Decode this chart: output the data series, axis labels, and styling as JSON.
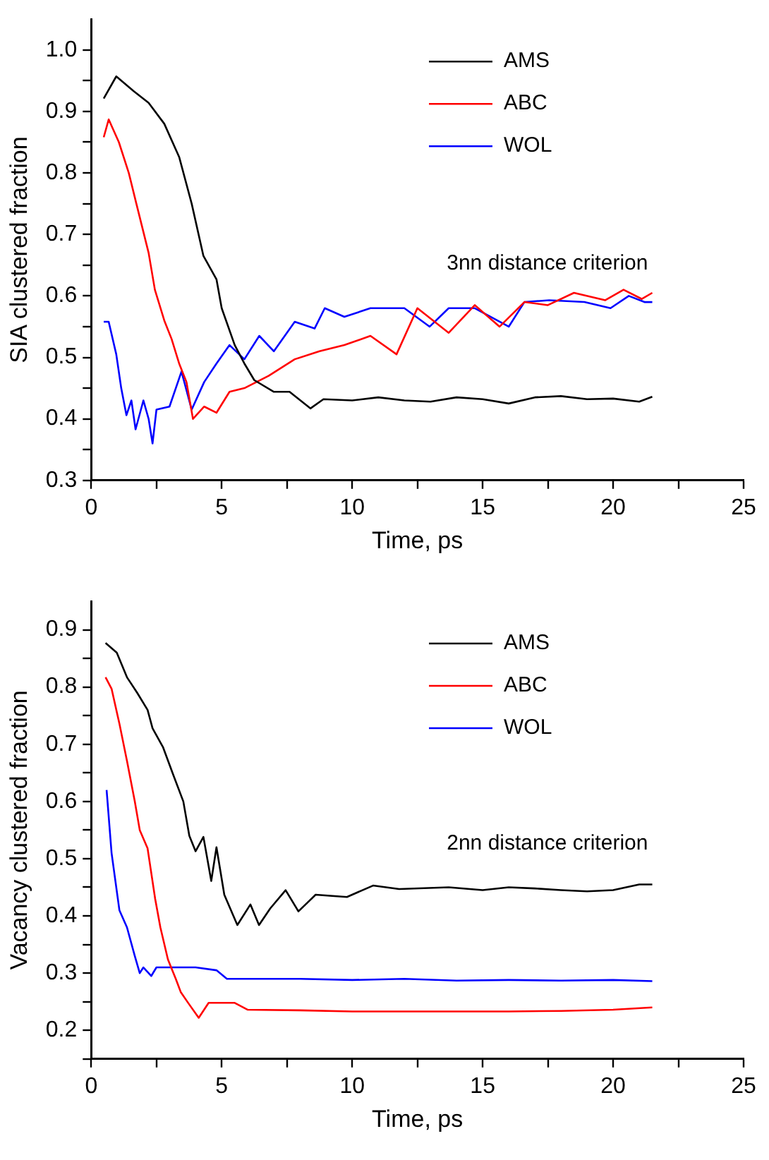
{
  "chart_data": [
    {
      "type": "line",
      "xlabel": "Time, ps",
      "ylabel": "SIA clustered fraction",
      "annotations": [
        "3nn distance criterion"
      ],
      "legend": "top right",
      "marker": "none",
      "line_style": "solid",
      "xlim": [
        0,
        25
      ],
      "xticks": [
        0,
        {
          "value": 2.5,
          "label": null
        },
        5,
        {
          "value": 7.5,
          "label": null
        },
        10,
        {
          "value": 12.5,
          "label": null
        },
        15,
        {
          "value": 17.5,
          "label": null
        },
        20,
        {
          "value": 22.5,
          "label": null
        },
        25
      ],
      "ylim": [
        0.3,
        1.05
      ],
      "yticks": [
        {
          "value": 0.3,
          "label": "0.3"
        },
        {
          "value": 0.35,
          "label": null
        },
        {
          "value": 0.4,
          "label": "0.4"
        },
        {
          "value": 0.45,
          "label": null
        },
        {
          "value": 0.5,
          "label": "0.5"
        },
        {
          "value": 0.55,
          "label": null
        },
        {
          "value": 0.6,
          "label": "0.6"
        },
        {
          "value": 0.65,
          "label": null
        },
        {
          "value": 0.7,
          "label": "0.7"
        },
        {
          "value": 0.75,
          "label": null
        },
        {
          "value": 0.8,
          "label": "0.8"
        },
        {
          "value": 0.85,
          "label": null
        },
        {
          "value": 0.9,
          "label": "0.9"
        },
        {
          "value": 0.95,
          "label": null
        },
        {
          "value": 1.0,
          "label": "1.0"
        }
      ],
      "series": [
        {
          "name": "AMS",
          "color": "#000000",
          "x": [
            0.48,
            0.96,
            1.63,
            2.2,
            2.8,
            3.37,
            3.85,
            4.3,
            4.8,
            5.0,
            5.5,
            5.87,
            6.25,
            7.0,
            7.6,
            8.4,
            8.9,
            10,
            11,
            12,
            13,
            14,
            15,
            16,
            17,
            18,
            19,
            20,
            21,
            21.5
          ],
          "values": [
            0.921,
            0.957,
            0.933,
            0.914,
            0.88,
            0.826,
            0.75,
            0.665,
            0.627,
            0.58,
            0.52,
            0.49,
            0.463,
            0.444,
            0.444,
            0.417,
            0.432,
            0.43,
            0.435,
            0.43,
            0.428,
            0.435,
            0.432,
            0.425,
            0.435,
            0.437,
            0.432,
            0.433,
            0.428,
            0.436
          ]
        },
        {
          "name": "ABC",
          "color": "#ff0000",
          "x": [
            0.48,
            0.67,
            1.06,
            1.44,
            1.73,
            2.2,
            2.44,
            2.8,
            3.08,
            3.37,
            3.65,
            3.9,
            4.33,
            4.8,
            5.3,
            5.87,
            6.8,
            7.8,
            8.75,
            9.7,
            10.7,
            11.7,
            12.5,
            13.7,
            14.7,
            15.65,
            16.6,
            17.5,
            18.5,
            19.7,
            20.4,
            21.1,
            21.5
          ],
          "values": [
            0.858,
            0.887,
            0.85,
            0.8,
            0.75,
            0.67,
            0.61,
            0.56,
            0.53,
            0.49,
            0.46,
            0.4,
            0.42,
            0.41,
            0.444,
            0.45,
            0.47,
            0.497,
            0.51,
            0.52,
            0.535,
            0.505,
            0.58,
            0.54,
            0.585,
            0.55,
            0.59,
            0.585,
            0.605,
            0.593,
            0.61,
            0.595,
            0.605
          ]
        },
        {
          "name": "WOL",
          "color": "#0000ff",
          "x": [
            0.48,
            0.67,
            0.96,
            1.15,
            1.35,
            1.54,
            1.7,
            2.0,
            2.2,
            2.35,
            2.5,
            3.0,
            3.46,
            3.85,
            4.33,
            4.8,
            5.3,
            5.87,
            6.44,
            7.0,
            7.8,
            8.56,
            8.95,
            9.7,
            10.7,
            12.0,
            12.97,
            13.7,
            14.7,
            16.0,
            16.6,
            17.55,
            18.9,
            19.9,
            20.6,
            21.2,
            21.5
          ],
          "values": [
            0.558,
            0.558,
            0.505,
            0.45,
            0.406,
            0.43,
            0.383,
            0.43,
            0.4,
            0.36,
            0.415,
            0.42,
            0.477,
            0.415,
            0.46,
            0.49,
            0.52,
            0.497,
            0.535,
            0.51,
            0.558,
            0.547,
            0.58,
            0.566,
            0.58,
            0.58,
            0.55,
            0.58,
            0.58,
            0.55,
            0.59,
            0.593,
            0.59,
            0.58,
            0.6,
            0.59,
            0.59
          ]
        }
      ]
    },
    {
      "type": "line",
      "xlabel": "Time, ps",
      "ylabel": "Vacancy clustered fraction",
      "annotations": [
        "2nn distance criterion"
      ],
      "legend": "top right",
      "marker": "none",
      "line_style": "solid",
      "xlim": [
        0,
        25
      ],
      "xticks": [
        0,
        {
          "value": 2.5,
          "label": null
        },
        5,
        {
          "value": 7.5,
          "label": null
        },
        10,
        {
          "value": 12.5,
          "label": null
        },
        15,
        {
          "value": 17.5,
          "label": null
        },
        20,
        {
          "value": 22.5,
          "label": null
        },
        25
      ],
      "ylim": [
        0.15,
        0.95
      ],
      "yticks": [
        {
          "value": 0.15,
          "label": null
        },
        {
          "value": 0.2,
          "label": "0.2"
        },
        {
          "value": 0.25,
          "label": null
        },
        {
          "value": 0.3,
          "label": "0.3"
        },
        {
          "value": 0.35,
          "label": null
        },
        {
          "value": 0.4,
          "label": "0.4"
        },
        {
          "value": 0.45,
          "label": null
        },
        {
          "value": 0.5,
          "label": "0.5"
        },
        {
          "value": 0.55,
          "label": null
        },
        {
          "value": 0.6,
          "label": "0.6"
        },
        {
          "value": 0.65,
          "label": null
        },
        {
          "value": 0.7,
          "label": "0.7"
        },
        {
          "value": 0.75,
          "label": null
        },
        {
          "value": 0.8,
          "label": "0.8"
        },
        {
          "value": 0.85,
          "label": null
        },
        {
          "value": 0.9,
          "label": "0.9"
        }
      ],
      "series": [
        {
          "name": "AMS",
          "color": "#000000",
          "x": [
            0.55,
            0.98,
            1.37,
            1.76,
            2.16,
            2.35,
            2.75,
            3.14,
            3.53,
            3.76,
            4.0,
            4.3,
            4.6,
            4.8,
            5.1,
            5.6,
            6.1,
            6.43,
            6.86,
            7.45,
            7.94,
            8.6,
            9.8,
            10.8,
            11.8,
            13.7,
            15,
            16,
            17,
            18,
            19,
            20,
            21,
            21.5
          ],
          "values": [
            0.877,
            0.86,
            0.817,
            0.79,
            0.76,
            0.728,
            0.695,
            0.647,
            0.6,
            0.54,
            0.513,
            0.538,
            0.461,
            0.52,
            0.437,
            0.384,
            0.42,
            0.384,
            0.413,
            0.445,
            0.408,
            0.437,
            0.433,
            0.453,
            0.447,
            0.45,
            0.445,
            0.45,
            0.448,
            0.445,
            0.443,
            0.445,
            0.455,
            0.455
          ]
        },
        {
          "name": "ABC",
          "color": "#ff0000",
          "x": [
            0.55,
            0.78,
            1.08,
            1.37,
            1.67,
            1.86,
            2.16,
            2.45,
            2.65,
            2.94,
            3.24,
            3.43,
            3.73,
            4.12,
            4.5,
            5.5,
            6.0,
            8,
            10,
            12,
            14,
            16,
            18,
            20,
            21.5
          ],
          "values": [
            0.817,
            0.797,
            0.736,
            0.671,
            0.6,
            0.55,
            0.518,
            0.43,
            0.38,
            0.324,
            0.29,
            0.267,
            0.247,
            0.222,
            0.248,
            0.248,
            0.236,
            0.235,
            0.233,
            0.233,
            0.233,
            0.233,
            0.234,
            0.236,
            0.24
          ]
        },
        {
          "name": "WOL",
          "color": "#0000ff",
          "x": [
            0.59,
            0.78,
            1.08,
            1.37,
            1.67,
            1.86,
            2.0,
            2.3,
            2.5,
            3.0,
            4.0,
            4.8,
            5.2,
            6,
            8,
            10,
            12,
            14,
            16,
            18,
            20,
            21.5
          ],
          "values": [
            0.62,
            0.51,
            0.41,
            0.38,
            0.33,
            0.3,
            0.31,
            0.295,
            0.31,
            0.31,
            0.31,
            0.305,
            0.29,
            0.29,
            0.29,
            0.288,
            0.29,
            0.287,
            0.288,
            0.287,
            0.288,
            0.286
          ]
        }
      ]
    }
  ]
}
